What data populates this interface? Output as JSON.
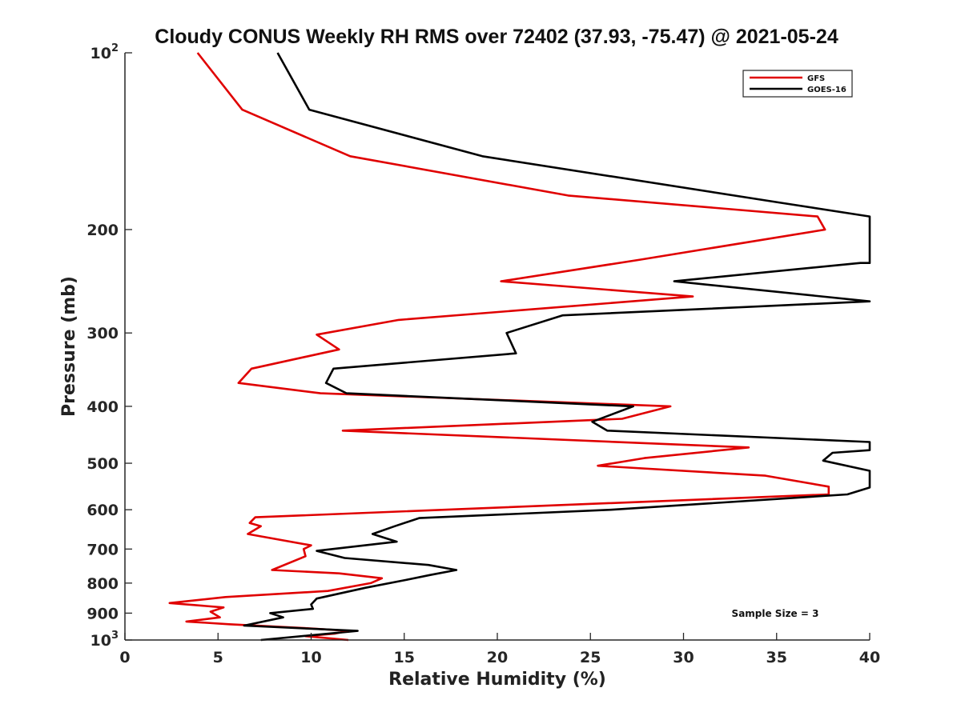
{
  "chart_data": {
    "type": "line",
    "title": "Cloudy CONUS Weekly RH RMS over 72402 (37.93, -75.47) @ 2021-05-24",
    "xlabel": "Relative Humidity (%)",
    "ylabel": "Pressure (mb)",
    "xlim": [
      0,
      40
    ],
    "ylim": [
      100,
      1000
    ],
    "y_scale": "log",
    "y_reversed": true,
    "grid": false,
    "legend_position": "top-right",
    "x_ticks": [
      0,
      5,
      10,
      15,
      20,
      25,
      30,
      35,
      40
    ],
    "x_tick_labels": [
      "0",
      "5",
      "10",
      "15",
      "20",
      "25",
      "30",
      "35",
      "40"
    ],
    "y_ticks": [
      100,
      200,
      300,
      400,
      500,
      600,
      700,
      800,
      900,
      1000
    ],
    "y_tick_labels": [
      {
        "base": "10",
        "exp": "2"
      },
      {
        "base": "200",
        "exp": ""
      },
      {
        "base": "300",
        "exp": ""
      },
      {
        "base": "400",
        "exp": ""
      },
      {
        "base": "500",
        "exp": ""
      },
      {
        "base": "600",
        "exp": ""
      },
      {
        "base": "700",
        "exp": ""
      },
      {
        "base": "800",
        "exp": ""
      },
      {
        "base": "900",
        "exp": ""
      },
      {
        "base": "10",
        "exp": "3"
      }
    ],
    "series": [
      {
        "name": "GFS",
        "color": "#e00000",
        "points": [
          [
            3.9,
            100
          ],
          [
            6.3,
            125
          ],
          [
            12.1,
            150
          ],
          [
            23.8,
            175
          ],
          [
            37.2,
            190
          ],
          [
            37.6,
            200
          ],
          [
            27.7,
            225
          ],
          [
            20.2,
            245
          ],
          [
            30.5,
            260
          ],
          [
            14.7,
            285
          ],
          [
            10.3,
            302
          ],
          [
            11.5,
            320
          ],
          [
            6.8,
            345
          ],
          [
            6.1,
            365
          ],
          [
            10.5,
            380
          ],
          [
            29.3,
            400
          ],
          [
            26.7,
            420
          ],
          [
            11.7,
            440
          ],
          [
            33.5,
            470
          ],
          [
            27.9,
            490
          ],
          [
            25.4,
            505
          ],
          [
            34.4,
            525
          ],
          [
            37.8,
            548
          ],
          [
            37.8,
            565
          ],
          [
            7.0,
            618
          ],
          [
            6.7,
            632
          ],
          [
            7.3,
            640
          ],
          [
            6.6,
            660
          ],
          [
            10.0,
            690
          ],
          [
            9.6,
            700
          ],
          [
            9.7,
            720
          ],
          [
            7.9,
            760
          ],
          [
            11.5,
            770
          ],
          [
            13.8,
            785
          ],
          [
            13.2,
            800
          ],
          [
            10.9,
            825
          ],
          [
            5.4,
            845
          ],
          [
            2.4,
            865
          ],
          [
            5.3,
            880
          ],
          [
            4.6,
            895
          ],
          [
            5.1,
            915
          ],
          [
            3.3,
            930
          ],
          [
            5.6,
            940
          ],
          [
            9.8,
            955
          ],
          [
            12.0,
            965
          ],
          [
            11.3,
            975
          ],
          [
            9.7,
            985
          ],
          [
            12.0,
            1000
          ]
        ]
      },
      {
        "name": "GOES-16",
        "color": "#000000",
        "points": [
          [
            8.2,
            100
          ],
          [
            9.9,
            125
          ],
          [
            19.2,
            150
          ],
          [
            35.2,
            180
          ],
          [
            40,
            190
          ],
          [
            40,
            228
          ],
          [
            39.5,
            228
          ],
          [
            29.5,
            245
          ],
          [
            40,
            265
          ],
          [
            23.5,
            280
          ],
          [
            20.5,
            300
          ],
          [
            21.0,
            325
          ],
          [
            11.2,
            345
          ],
          [
            10.8,
            365
          ],
          [
            11.9,
            380
          ],
          [
            27.3,
            400
          ],
          [
            25.1,
            425
          ],
          [
            25.9,
            440
          ],
          [
            40,
            460
          ],
          [
            40,
            475
          ],
          [
            38.0,
            480
          ],
          [
            37.5,
            495
          ],
          [
            40,
            515
          ],
          [
            40,
            550
          ],
          [
            38.8,
            565
          ],
          [
            26.1,
            600
          ],
          [
            15.8,
            620
          ],
          [
            14.5,
            640
          ],
          [
            13.3,
            660
          ],
          [
            14.6,
            680
          ],
          [
            10.3,
            705
          ],
          [
            11.8,
            725
          ],
          [
            16.3,
            745
          ],
          [
            17.8,
            760
          ],
          [
            16.4,
            775
          ],
          [
            15.1,
            790
          ],
          [
            12.9,
            815
          ],
          [
            10.3,
            850
          ],
          [
            10.0,
            870
          ],
          [
            10.1,
            885
          ],
          [
            7.8,
            900
          ],
          [
            8.5,
            915
          ],
          [
            6.4,
            945
          ],
          [
            12.5,
            965
          ],
          [
            7.3,
            1000
          ]
        ]
      }
    ],
    "legend": [
      {
        "label": "GFS",
        "color": "#e00000"
      },
      {
        "label": "GOES-16",
        "color": "#000000"
      }
    ],
    "annotations": [
      {
        "text": "Sample Size = 3",
        "x": 38,
        "y": 900
      }
    ]
  }
}
